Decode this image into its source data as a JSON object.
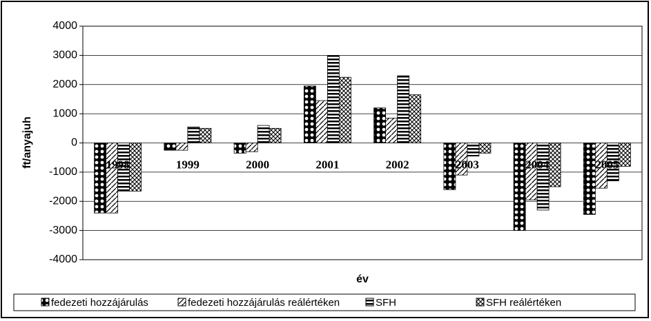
{
  "chart_data": {
    "type": "bar",
    "categories": [
      "1998",
      "1999",
      "2000",
      "2001",
      "2002",
      "2003",
      "2004",
      "2005"
    ],
    "series": [
      {
        "name": "fedezeti hozzájárulás",
        "color": "#000000",
        "pattern": "dots",
        "values": [
          -2400,
          -250,
          -350,
          1950,
          1200,
          -1600,
          -3000,
          -2450
        ]
      },
      {
        "name": "fedezeti hozzájárulás reálértéken",
        "color": "#000000",
        "pattern": "diagonal",
        "values": [
          -2400,
          -250,
          -300,
          1450,
          850,
          -1100,
          -1950,
          -1550
        ]
      },
      {
        "name": "SFH",
        "color": "#000000",
        "pattern": "horizontal",
        "values": [
          -1650,
          550,
          600,
          3000,
          2300,
          -450,
          -2300,
          -1300
        ]
      },
      {
        "name": "SFH reálértéken",
        "color": "#000000",
        "pattern": "crosshatch",
        "values": [
          -1650,
          500,
          500,
          2250,
          1650,
          -350,
          -1500,
          -800
        ]
      }
    ],
    "xlabel": "év",
    "ylabel": "ft/anyajuh",
    "ylim": [
      -4000,
      4000
    ],
    "yticks": [
      -4000,
      -3000,
      -2000,
      -1000,
      0,
      1000,
      2000,
      3000,
      4000
    ],
    "grid": true,
    "legend": "bottom"
  }
}
